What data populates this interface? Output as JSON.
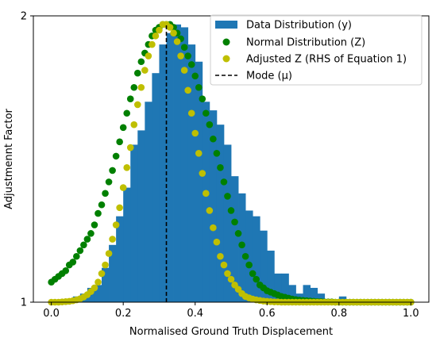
{
  "chart_data": {
    "type": "bar",
    "xlabel": "Normalised Ground Truth Displacement",
    "ylabel": "Adjustmennt Factor",
    "xlim": [
      -0.05,
      1.05
    ],
    "ylim": [
      1.0,
      2.0
    ],
    "x_ticks": [
      0.0,
      0.2,
      0.4,
      0.6,
      0.8,
      1.0
    ],
    "x_tick_labels": [
      "0.0",
      "0.2",
      "0.4",
      "0.6",
      "0.8",
      "1.0"
    ],
    "y_ticks": [
      1,
      2
    ],
    "y_tick_labels": [
      "1",
      "2"
    ],
    "grid": false,
    "legend_position": "top-right",
    "histogram": {
      "name": "Data Distribution (y)",
      "color": "#1f77b4",
      "bin_width": 0.02,
      "bin_start": 0.0,
      "values": [
        1.003,
        1.008,
        1.012,
        1.02,
        1.03,
        1.05,
        1.06,
        1.12,
        1.2,
        1.3,
        1.4,
        1.55,
        1.6,
        1.7,
        1.8,
        1.9,
        1.94,
        1.97,
        1.96,
        1.9,
        1.84,
        1.7,
        1.67,
        1.62,
        1.55,
        1.44,
        1.38,
        1.32,
        1.3,
        1.25,
        1.18,
        1.1,
        1.1,
        1.06,
        1.03,
        1.06,
        1.05,
        1.03,
        1.01,
        1.01,
        1.02,
        1.01,
        1.007,
        1.005,
        1.003,
        1.002,
        1.001,
        1.001,
        1.0,
        1.0
      ]
    },
    "series": [
      {
        "name": "Normal Distribution (Z)",
        "color": "#008000",
        "marker": "circle",
        "x": [
          0.0,
          0.01,
          0.02,
          0.03,
          0.04,
          0.05,
          0.06,
          0.07,
          0.08,
          0.09,
          0.1,
          0.11,
          0.12,
          0.13,
          0.14,
          0.15,
          0.16,
          0.17,
          0.18,
          0.19,
          0.2,
          0.21,
          0.22,
          0.23,
          0.24,
          0.25,
          0.26,
          0.27,
          0.28,
          0.29,
          0.3,
          0.31,
          0.32,
          0.33,
          0.34,
          0.35,
          0.36,
          0.37,
          0.38,
          0.39,
          0.4,
          0.41,
          0.42,
          0.43,
          0.44,
          0.45,
          0.46,
          0.47,
          0.48,
          0.49,
          0.5,
          0.51,
          0.52,
          0.53,
          0.54,
          0.55,
          0.56,
          0.57,
          0.58,
          0.59,
          0.6,
          0.61,
          0.62,
          0.63,
          0.64,
          0.65,
          0.66,
          0.67,
          0.68,
          0.69,
          0.7,
          0.71,
          0.72,
          0.73,
          0.74,
          0.75,
          0.76,
          0.77,
          0.78,
          0.79,
          0.8,
          0.81,
          0.82,
          0.83,
          0.84,
          0.85,
          0.86,
          0.87,
          0.88,
          0.89,
          0.9,
          0.91,
          0.92,
          0.93,
          0.94,
          0.95,
          0.96,
          0.97,
          0.98,
          0.99,
          1.0
        ],
        "y": [
          1.07,
          1.08,
          1.09,
          1.1,
          1.11,
          1.13,
          1.14,
          1.16,
          1.18,
          1.2,
          1.22,
          1.24,
          1.27,
          1.31,
          1.34,
          1.38,
          1.42,
          1.46,
          1.51,
          1.56,
          1.61,
          1.66,
          1.71,
          1.75,
          1.8,
          1.84,
          1.87,
          1.9,
          1.93,
          1.95,
          1.96,
          1.97,
          1.97,
          1.97,
          1.96,
          1.94,
          1.92,
          1.89,
          1.86,
          1.83,
          1.79,
          1.75,
          1.71,
          1.66,
          1.62,
          1.57,
          1.52,
          1.47,
          1.42,
          1.37,
          1.32,
          1.28,
          1.24,
          1.2,
          1.16,
          1.13,
          1.1,
          1.08,
          1.06,
          1.05,
          1.04,
          1.035,
          1.03,
          1.025,
          1.02,
          1.017,
          1.014,
          1.011,
          1.009,
          1.007,
          1.006,
          1.005,
          1.004,
          1.003,
          1.002,
          1.002,
          1.001,
          1.001,
          1.001,
          1.0,
          1.0,
          1.0,
          1.0,
          1.0,
          1.0,
          1.0,
          1.0,
          1.0,
          1.0,
          1.0,
          1.0,
          1.0,
          1.0,
          1.0,
          1.0,
          1.0,
          1.0,
          1.0,
          1.0,
          1.0,
          1.0
        ]
      },
      {
        "name": "Adjusted Z (RHS of Equation 1)",
        "color": "#bfbf00",
        "marker": "circle",
        "x": [
          0.0,
          0.01,
          0.02,
          0.03,
          0.04,
          0.05,
          0.06,
          0.07,
          0.08,
          0.09,
          0.1,
          0.11,
          0.12,
          0.13,
          0.14,
          0.15,
          0.16,
          0.17,
          0.18,
          0.19,
          0.2,
          0.21,
          0.22,
          0.23,
          0.24,
          0.25,
          0.26,
          0.27,
          0.28,
          0.29,
          0.3,
          0.31,
          0.32,
          0.33,
          0.34,
          0.35,
          0.36,
          0.37,
          0.38,
          0.39,
          0.4,
          0.41,
          0.42,
          0.43,
          0.44,
          0.45,
          0.46,
          0.47,
          0.48,
          0.49,
          0.5,
          0.51,
          0.52,
          0.53,
          0.54,
          0.55,
          0.56,
          0.57,
          0.58,
          0.59,
          0.6,
          0.61,
          0.62,
          0.63,
          0.64,
          0.65,
          0.66,
          0.67,
          0.68,
          0.69,
          0.7,
          0.71,
          0.72,
          0.73,
          0.74,
          0.75,
          0.76,
          0.77,
          0.78,
          0.79,
          0.8,
          0.81,
          0.82,
          0.83,
          0.84,
          0.85,
          0.86,
          0.87,
          0.88,
          0.89,
          0.9,
          0.91,
          0.92,
          0.93,
          0.94,
          0.95,
          0.96,
          0.97,
          0.98,
          0.99,
          1.0
        ],
        "y": [
          1.0,
          1.0,
          1.0,
          1.001,
          1.002,
          1.003,
          1.005,
          1.008,
          1.012,
          1.018,
          1.026,
          1.037,
          1.05,
          1.07,
          1.1,
          1.13,
          1.17,
          1.22,
          1.27,
          1.33,
          1.4,
          1.47,
          1.54,
          1.62,
          1.69,
          1.75,
          1.81,
          1.86,
          1.9,
          1.93,
          1.95,
          1.97,
          1.97,
          1.96,
          1.94,
          1.91,
          1.86,
          1.81,
          1.74,
          1.66,
          1.59,
          1.52,
          1.45,
          1.38,
          1.32,
          1.26,
          1.21,
          1.16,
          1.13,
          1.1,
          1.08,
          1.06,
          1.045,
          1.03,
          1.02,
          1.015,
          1.011,
          1.008,
          1.006,
          1.004,
          1.003,
          1.002,
          1.001,
          1.001,
          1.0,
          1.0,
          1.0,
          1.0,
          1.0,
          1.0,
          1.0,
          1.0,
          1.0,
          1.0,
          1.0,
          1.0,
          1.0,
          1.0,
          1.0,
          1.0,
          1.0,
          1.0,
          1.0,
          1.0,
          1.0,
          1.0,
          1.0,
          1.0,
          1.0,
          1.0,
          1.0,
          1.0,
          1.0,
          1.0,
          1.0,
          1.0,
          1.0,
          1.0,
          1.0,
          1.0,
          1.0
        ]
      }
    ],
    "mode_line": {
      "name": "Mode (μ)",
      "x": 0.32,
      "color": "#000000",
      "style": "dashed"
    }
  }
}
